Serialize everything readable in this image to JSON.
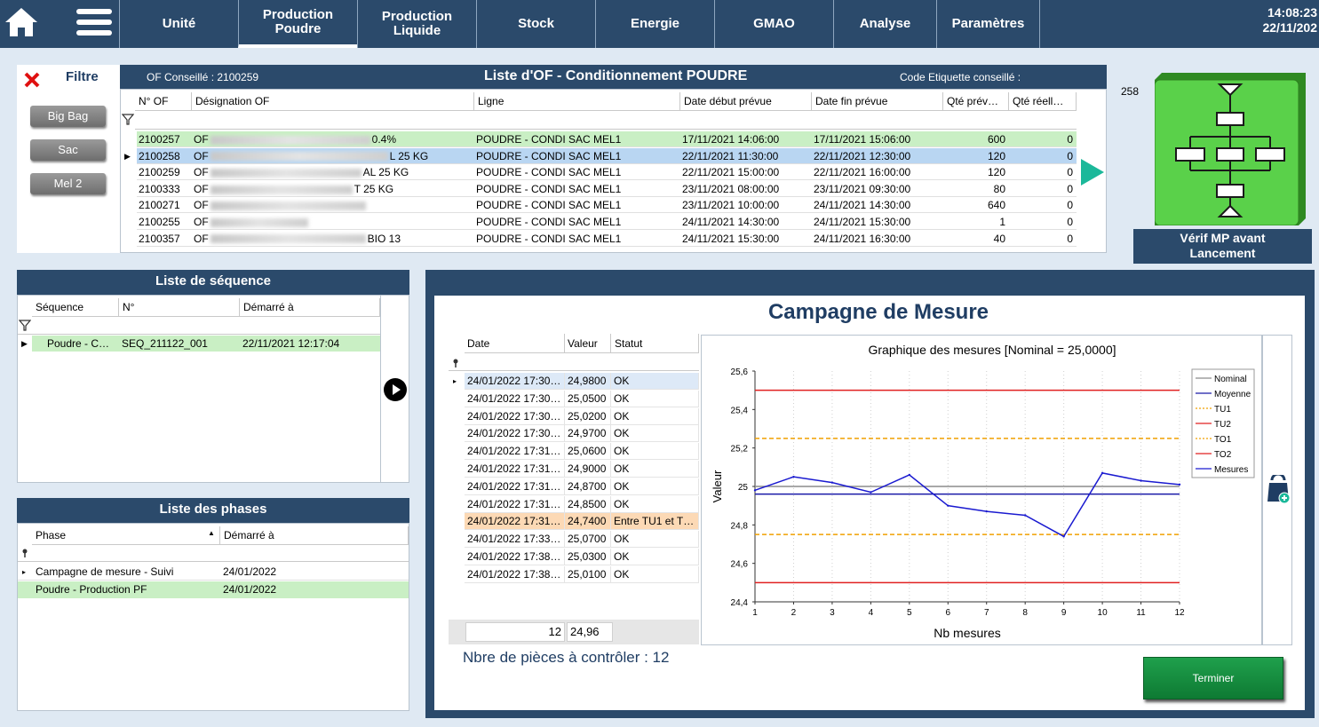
{
  "nav": {
    "tabs": [
      {
        "label": "Unité",
        "active": false
      },
      {
        "label": "Production\nPoudre",
        "active": true
      },
      {
        "label": "Production\nLiquide",
        "active": false
      },
      {
        "label": "Stock",
        "active": false
      },
      {
        "label": "Energie",
        "active": false
      },
      {
        "label": "GMAO",
        "active": false
      },
      {
        "label": "Analyse",
        "active": false
      },
      {
        "label": "Paramètres",
        "active": false
      }
    ],
    "time": "14:08:23",
    "date": "22/11/202"
  },
  "filter": {
    "title": "Filtre",
    "buttons": [
      "Big Bag",
      "Sac",
      "Mel 2"
    ]
  },
  "of_list": {
    "conseille": "OF Conseillé : 2100259",
    "title": "Liste d'OF - Conditionnement POUDRE",
    "etiquette": "Code Etiquette conseillé :",
    "columns": [
      "N° OF",
      "Désignation OF",
      "Ligne",
      "Date début prévue",
      "Date fin prévue",
      "Qté prév…",
      "Qté réell…"
    ],
    "rows": [
      {
        "of": "2100257",
        "des_a": "OF",
        "des_b": "0.4%",
        "ligne": "POUDRE - CONDI SAC MEL1",
        "debut": "17/11/2021 14:06:00",
        "fin": "17/11/2021 15:06:00",
        "qte_prev": "600",
        "qte_reel": "0",
        "state": "done"
      },
      {
        "of": "2100258",
        "des_a": "OF",
        "des_b": "L 25 KG",
        "ligne": "POUDRE - CONDI SAC MEL1",
        "debut": "22/11/2021 11:30:00",
        "fin": "22/11/2021 12:30:00",
        "qte_prev": "120",
        "qte_reel": "0",
        "state": "selected"
      },
      {
        "of": "2100259",
        "des_a": "OF",
        "des_b": "AL 25 KG",
        "ligne": "POUDRE - CONDI SAC MEL1",
        "debut": "22/11/2021 15:00:00",
        "fin": "22/11/2021 16:00:00",
        "qte_prev": "120",
        "qte_reel": "0",
        "state": ""
      },
      {
        "of": "2100333",
        "des_a": "OF",
        "des_b": "T 25 KG",
        "ligne": "POUDRE - CONDI SAC MEL1",
        "debut": "23/11/2021 08:00:00",
        "fin": "23/11/2021 09:30:00",
        "qte_prev": "80",
        "qte_reel": "0",
        "state": ""
      },
      {
        "of": "2100271",
        "des_a": "OF",
        "des_b": "",
        "ligne": "POUDRE - CONDI SAC MEL1",
        "debut": "23/11/2021 10:00:00",
        "fin": "24/11/2021 14:30:00",
        "qte_prev": "640",
        "qte_reel": "0",
        "state": ""
      },
      {
        "of": "2100255",
        "des_a": "OF",
        "des_b": "",
        "ligne": "POUDRE - CONDI SAC MEL1",
        "debut": "24/11/2021 14:30:00",
        "fin": "24/11/2021 15:30:00",
        "qte_prev": "1",
        "qte_reel": "0",
        "state": ""
      },
      {
        "of": "2100357",
        "des_a": "OF",
        "des_b": "BIO 13",
        "ligne": "POUDRE - CONDI SAC MEL1",
        "debut": "24/11/2021 15:30:00",
        "fin": "24/11/2021 16:30:00",
        "qte_prev": "40",
        "qte_reel": "0",
        "state": ""
      }
    ]
  },
  "verif": {
    "value": "258",
    "label": "Vérif MP avant\nLancement"
  },
  "sequence": {
    "title": "Liste de séquence",
    "columns": [
      "Séquence",
      "N°",
      "Démarré à"
    ],
    "rows": [
      {
        "seq": "Poudre - C…",
        "num": "SEQ_211122_001",
        "start": "22/11/2021 12:17:04"
      }
    ]
  },
  "phases": {
    "title": "Liste des phases",
    "columns": [
      "Phase",
      "Démarré à"
    ],
    "rows": [
      {
        "phase": "Campagne de mesure - Suivi",
        "start": "24/01/2022",
        "state": ""
      },
      {
        "phase": "Poudre - Production PF",
        "start": "24/01/2022",
        "state": "done"
      }
    ]
  },
  "campagne": {
    "title": "Campagne de Mesure",
    "columns": [
      "Date",
      "Valeur",
      "Statut"
    ],
    "rows": [
      {
        "date": "24/01/2022 17:30…",
        "val": "24,9800",
        "status": "OK",
        "state": "selected"
      },
      {
        "date": "24/01/2022 17:30…",
        "val": "25,0500",
        "status": "OK",
        "state": ""
      },
      {
        "date": "24/01/2022 17:30…",
        "val": "25,0200",
        "status": "OK",
        "state": ""
      },
      {
        "date": "24/01/2022 17:30…",
        "val": "24,9700",
        "status": "OK",
        "state": ""
      },
      {
        "date": "24/01/2022 17:31…",
        "val": "25,0600",
        "status": "OK",
        "state": ""
      },
      {
        "date": "24/01/2022 17:31…",
        "val": "24,9000",
        "status": "OK",
        "state": ""
      },
      {
        "date": "24/01/2022 17:31…",
        "val": "24,8700",
        "status": "OK",
        "state": ""
      },
      {
        "date": "24/01/2022 17:31…",
        "val": "24,8500",
        "status": "OK",
        "state": ""
      },
      {
        "date": "24/01/2022 17:31…",
        "val": "24,7400",
        "status": "Entre TU1 et T…",
        "state": "warn"
      },
      {
        "date": "24/01/2022 17:33…",
        "val": "25,0700",
        "status": "OK",
        "state": ""
      },
      {
        "date": "24/01/2022 17:38…",
        "val": "25,0300",
        "status": "OK",
        "state": ""
      },
      {
        "date": "24/01/2022 17:38…",
        "val": "25,0100",
        "status": "OK",
        "state": ""
      }
    ],
    "footer_count": "12",
    "footer_mean": "24,96",
    "nbre": "Nbre de pièces à contrôler : 12",
    "terminer": "Terminer"
  },
  "chart_data": {
    "type": "line",
    "title": "Graphique des mesures [Nominal = 25,0000]",
    "xlabel": "Nb mesures",
    "ylabel": "Valeur",
    "x": [
      1,
      2,
      3,
      4,
      5,
      6,
      7,
      8,
      9,
      10,
      11,
      12
    ],
    "xlim": [
      1,
      12
    ],
    "ylim": [
      24.4,
      25.6
    ],
    "yticks": [
      "24,4",
      "24,6",
      "24,8",
      "25",
      "25,2",
      "25,4",
      "25,6"
    ],
    "grid": true,
    "legend_position": "right",
    "series": [
      {
        "name": "Nominal",
        "color": "#8c8c8c",
        "dash": false,
        "values": [
          25,
          25,
          25,
          25,
          25,
          25,
          25,
          25,
          25,
          25,
          25,
          25
        ]
      },
      {
        "name": "Moyenne",
        "color": "#1a1aa8",
        "dash": false,
        "values": [
          24.96,
          24.96,
          24.96,
          24.96,
          24.96,
          24.96,
          24.96,
          24.96,
          24.96,
          24.96,
          24.96,
          24.96
        ]
      },
      {
        "name": "TU1",
        "color": "#f0a000",
        "dash": true,
        "values": [
          24.75,
          24.75,
          24.75,
          24.75,
          24.75,
          24.75,
          24.75,
          24.75,
          24.75,
          24.75,
          24.75,
          24.75
        ]
      },
      {
        "name": "TU2",
        "color": "#e02020",
        "dash": false,
        "values": [
          24.5,
          24.5,
          24.5,
          24.5,
          24.5,
          24.5,
          24.5,
          24.5,
          24.5,
          24.5,
          24.5,
          24.5
        ]
      },
      {
        "name": "TO1",
        "color": "#f0a000",
        "dash": true,
        "values": [
          25.25,
          25.25,
          25.25,
          25.25,
          25.25,
          25.25,
          25.25,
          25.25,
          25.25,
          25.25,
          25.25,
          25.25
        ]
      },
      {
        "name": "TO2",
        "color": "#e02020",
        "dash": false,
        "values": [
          25.5,
          25.5,
          25.5,
          25.5,
          25.5,
          25.5,
          25.5,
          25.5,
          25.5,
          25.5,
          25.5,
          25.5
        ]
      },
      {
        "name": "Mesures",
        "color": "#1a1ad0",
        "dash": false,
        "values": [
          24.98,
          25.05,
          25.02,
          24.97,
          25.06,
          24.9,
          24.87,
          24.85,
          24.74,
          25.07,
          25.03,
          25.01
        ]
      }
    ]
  },
  "colors": {
    "nav_bg": "#2b4a6b",
    "row_done": "#c9efc4",
    "row_selected": "#b9d6f2",
    "row_warn": "#fcd9b5",
    "verif_green": "#5ad14a",
    "play_arrow": "#1bb89a"
  }
}
